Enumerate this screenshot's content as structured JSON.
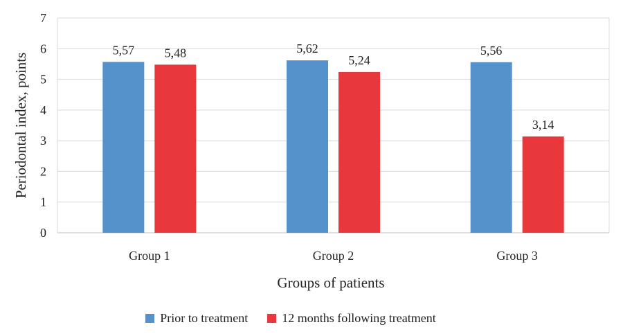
{
  "chart_data": {
    "type": "bar",
    "categories": [
      "Group 1",
      "Group 2",
      "Group 3"
    ],
    "series": [
      {
        "name": "Prior to treatment",
        "values": [
          5.57,
          5.62,
          5.56
        ],
        "labels": [
          "5,57",
          "5,62",
          "5,56"
        ],
        "color": "#5592cb"
      },
      {
        "name": "12 months following treatment",
        "values": [
          5.48,
          5.24,
          3.14
        ],
        "labels": [
          "5,48",
          "5,24",
          "3,14"
        ],
        "color": "#e8383b"
      }
    ],
    "xlabel": "Groups of patients",
    "ylabel": "Periodontal index, points",
    "ylim": [
      0,
      7
    ],
    "yticks": [
      "0",
      "1",
      "2",
      "3",
      "4",
      "5",
      "6",
      "7"
    ],
    "grid": true,
    "legend_position": "bottom"
  }
}
